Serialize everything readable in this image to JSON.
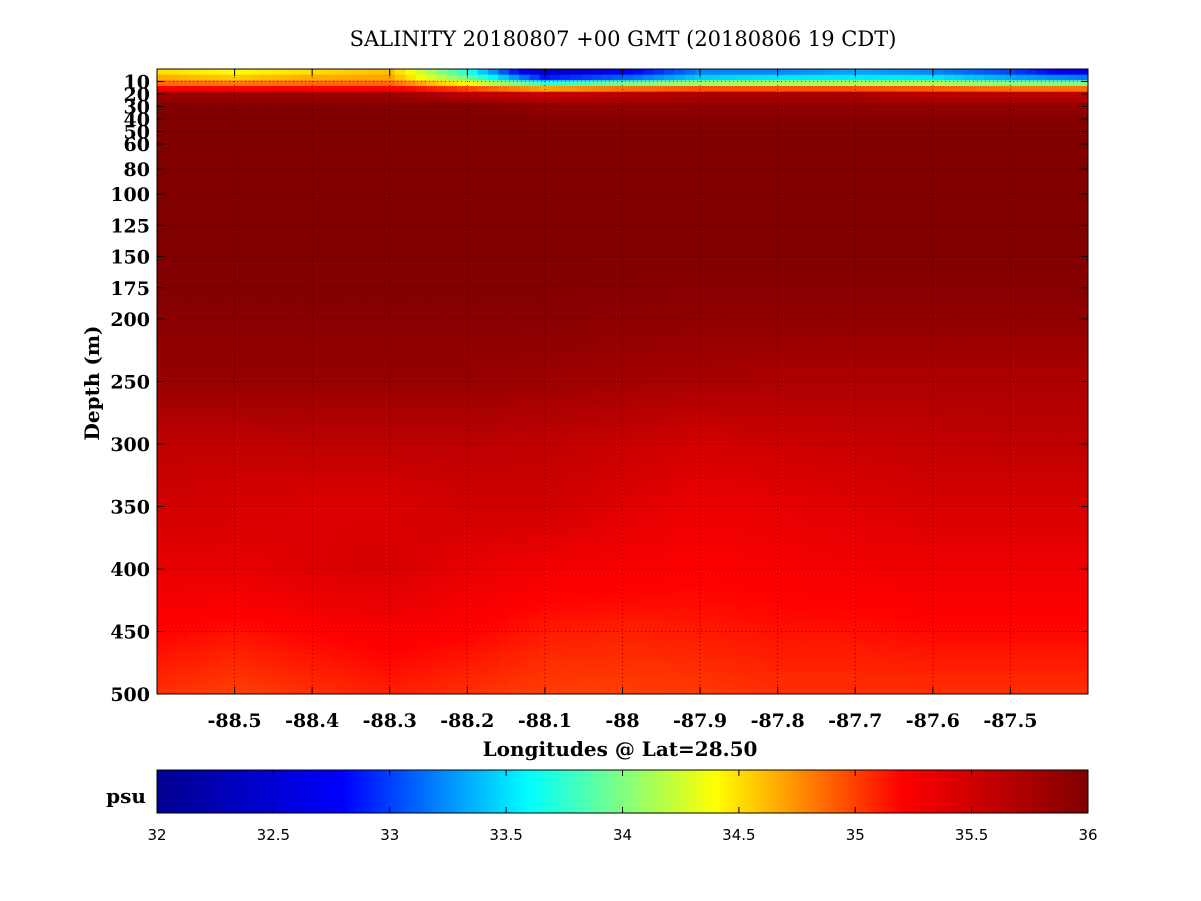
{
  "chart_data": {
    "type": "heatmap",
    "title": "SALINITY 20180807 +00 GMT (20180806 19 CDT)",
    "xlabel": "Longitudes @ Lat=28.50",
    "ylabel": "Depth (m)",
    "xlim": [
      -88.6,
      -87.4
    ],
    "ylim": [
      0,
      500
    ],
    "x_ticks": [
      -88.5,
      -88.4,
      -88.3,
      -88.2,
      -88.1,
      -88,
      -87.9,
      -87.8,
      -87.7,
      -87.6,
      -87.5
    ],
    "x_tick_labels": [
      "-88.5",
      "-88.4",
      "-88.3",
      "-88.2",
      "-88.1",
      "-88",
      "-87.9",
      "-87.8",
      "-87.7",
      "-87.6",
      "-87.5"
    ],
    "y_ticks": [
      10,
      20,
      30,
      40,
      50,
      60,
      80,
      100,
      125,
      150,
      175,
      200,
      250,
      300,
      350,
      400,
      450,
      500
    ],
    "y_tick_labels": [
      "10",
      "20",
      "30",
      "40",
      "50",
      "60",
      "80",
      "100",
      "125",
      "150",
      "175",
      "200",
      "250",
      "300",
      "350",
      "400",
      "450",
      "500"
    ],
    "grid": true,
    "colorbar": {
      "unit": "psu",
      "range": [
        32,
        36
      ],
      "ticks": [
        32,
        32.5,
        33,
        33.5,
        34,
        34.5,
        35,
        35.5,
        36
      ],
      "tick_labels": [
        "32",
        "32.5",
        "33",
        "33.5",
        "34",
        "34.5",
        "35",
        "35.5",
        "36"
      ],
      "colormap": [
        "#00008f",
        "#0000ff",
        "#00ffff",
        "#ffff00",
        "#ff0000",
        "#800000"
      ]
    },
    "x": [
      -88.6,
      -88.5,
      -88.4,
      -88.3,
      -88.2,
      -88.1,
      -88.0,
      -87.9,
      -87.8,
      -87.7,
      -87.6,
      -87.5,
      -87.4
    ],
    "depth": [
      2,
      8,
      14,
      20,
      30,
      50,
      100,
      150,
      200,
      250,
      300,
      350,
      400,
      450,
      500
    ],
    "values": [
      [
        34.5,
        34.4,
        34.5,
        34.6,
        33.7,
        32.3,
        32.7,
        33.2,
        33.2,
        33.3,
        33.2,
        33.0,
        32.6
      ],
      [
        34.7,
        34.6,
        34.7,
        34.7,
        34.0,
        33.0,
        33.2,
        33.5,
        33.6,
        33.6,
        33.6,
        33.4,
        33.3
      ],
      [
        35.0,
        35.0,
        35.0,
        35.0,
        34.7,
        34.3,
        34.5,
        34.6,
        34.6,
        34.6,
        34.6,
        34.5,
        34.5
      ],
      [
        35.8,
        35.8,
        35.8,
        35.8,
        35.6,
        35.5,
        35.6,
        35.7,
        35.7,
        35.7,
        35.6,
        35.6,
        35.6
      ],
      [
        36.0,
        36.0,
        36.0,
        36.0,
        36.0,
        35.9,
        35.9,
        35.9,
        35.9,
        35.9,
        35.9,
        35.9,
        35.9
      ],
      [
        36.0,
        36.0,
        36.0,
        36.0,
        36.0,
        36.0,
        36.0,
        36.0,
        36.0,
        36.0,
        36.0,
        36.0,
        36.0
      ],
      [
        36.0,
        36.0,
        36.0,
        36.0,
        36.0,
        36.0,
        36.0,
        36.0,
        36.0,
        36.0,
        36.0,
        36.0,
        36.0
      ],
      [
        36.0,
        36.0,
        36.0,
        36.0,
        36.0,
        36.0,
        36.0,
        36.0,
        36.0,
        36.0,
        36.0,
        36.0,
        36.0
      ],
      [
        35.95,
        35.95,
        35.95,
        35.95,
        35.95,
        35.95,
        35.92,
        35.9,
        35.9,
        35.9,
        35.9,
        35.9,
        35.9
      ],
      [
        35.85,
        35.85,
        35.85,
        35.85,
        35.85,
        35.82,
        35.78,
        35.75,
        35.72,
        35.72,
        35.72,
        35.72,
        35.72
      ],
      [
        35.6,
        35.6,
        35.62,
        35.62,
        35.62,
        35.6,
        35.55,
        35.48,
        35.52,
        35.55,
        35.58,
        35.6,
        35.6
      ],
      [
        35.5,
        35.45,
        35.42,
        35.42,
        35.5,
        35.5,
        35.4,
        35.32,
        35.35,
        35.4,
        35.45,
        35.45,
        35.45
      ],
      [
        35.35,
        35.35,
        35.42,
        35.45,
        35.35,
        35.28,
        35.25,
        35.22,
        35.25,
        35.28,
        35.3,
        35.3,
        35.3
      ],
      [
        35.2,
        35.15,
        35.2,
        35.25,
        35.2,
        35.12,
        35.1,
        35.12,
        35.15,
        35.15,
        35.18,
        35.18,
        35.18
      ],
      [
        35.05,
        35.0,
        35.05,
        35.1,
        35.05,
        35.0,
        35.0,
        35.02,
        35.05,
        35.05,
        35.05,
        35.05,
        35.05
      ]
    ]
  }
}
